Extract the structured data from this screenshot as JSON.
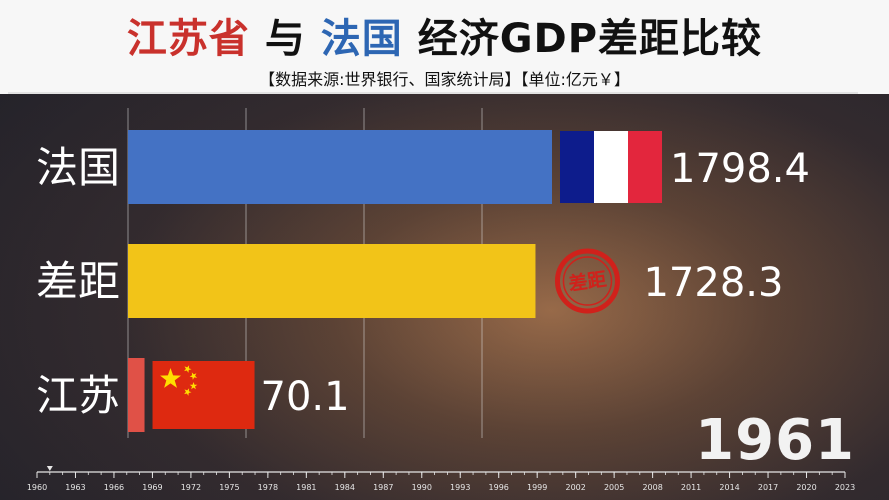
{
  "title": {
    "part1": "江苏省",
    "part2": " 与 ",
    "part3": "法国",
    "part4": " 经济GDP差距比较"
  },
  "subtitle": "【数据来源:世界银行、国家统计局】【单位:亿元￥】",
  "year": "1961",
  "colors": {
    "france": "#4472c4",
    "gap": "#f2c418",
    "jiangsu": "#e05147"
  },
  "chart_data": {
    "type": "bar",
    "orientation": "horizontal",
    "categories": [
      "法国",
      "差距",
      "江苏"
    ],
    "values": [
      1798.4,
      1728.3,
      70.1
    ],
    "value_labels": [
      "1798.4",
      "1728.3",
      "70.1"
    ],
    "badges": [
      "flag-france",
      "gap-stamp",
      "flag-china"
    ],
    "stamp_text": "差距",
    "timeline": {
      "ticks": [
        "1960",
        "1963",
        "1966",
        "1969",
        "1972",
        "1975",
        "1978",
        "1981",
        "1984",
        "1987",
        "1990",
        "1993",
        "1996",
        "1999",
        "2002",
        "2005",
        "2008",
        "2011",
        "2014",
        "2017",
        "2020",
        "2023"
      ],
      "current": "1961"
    }
  }
}
